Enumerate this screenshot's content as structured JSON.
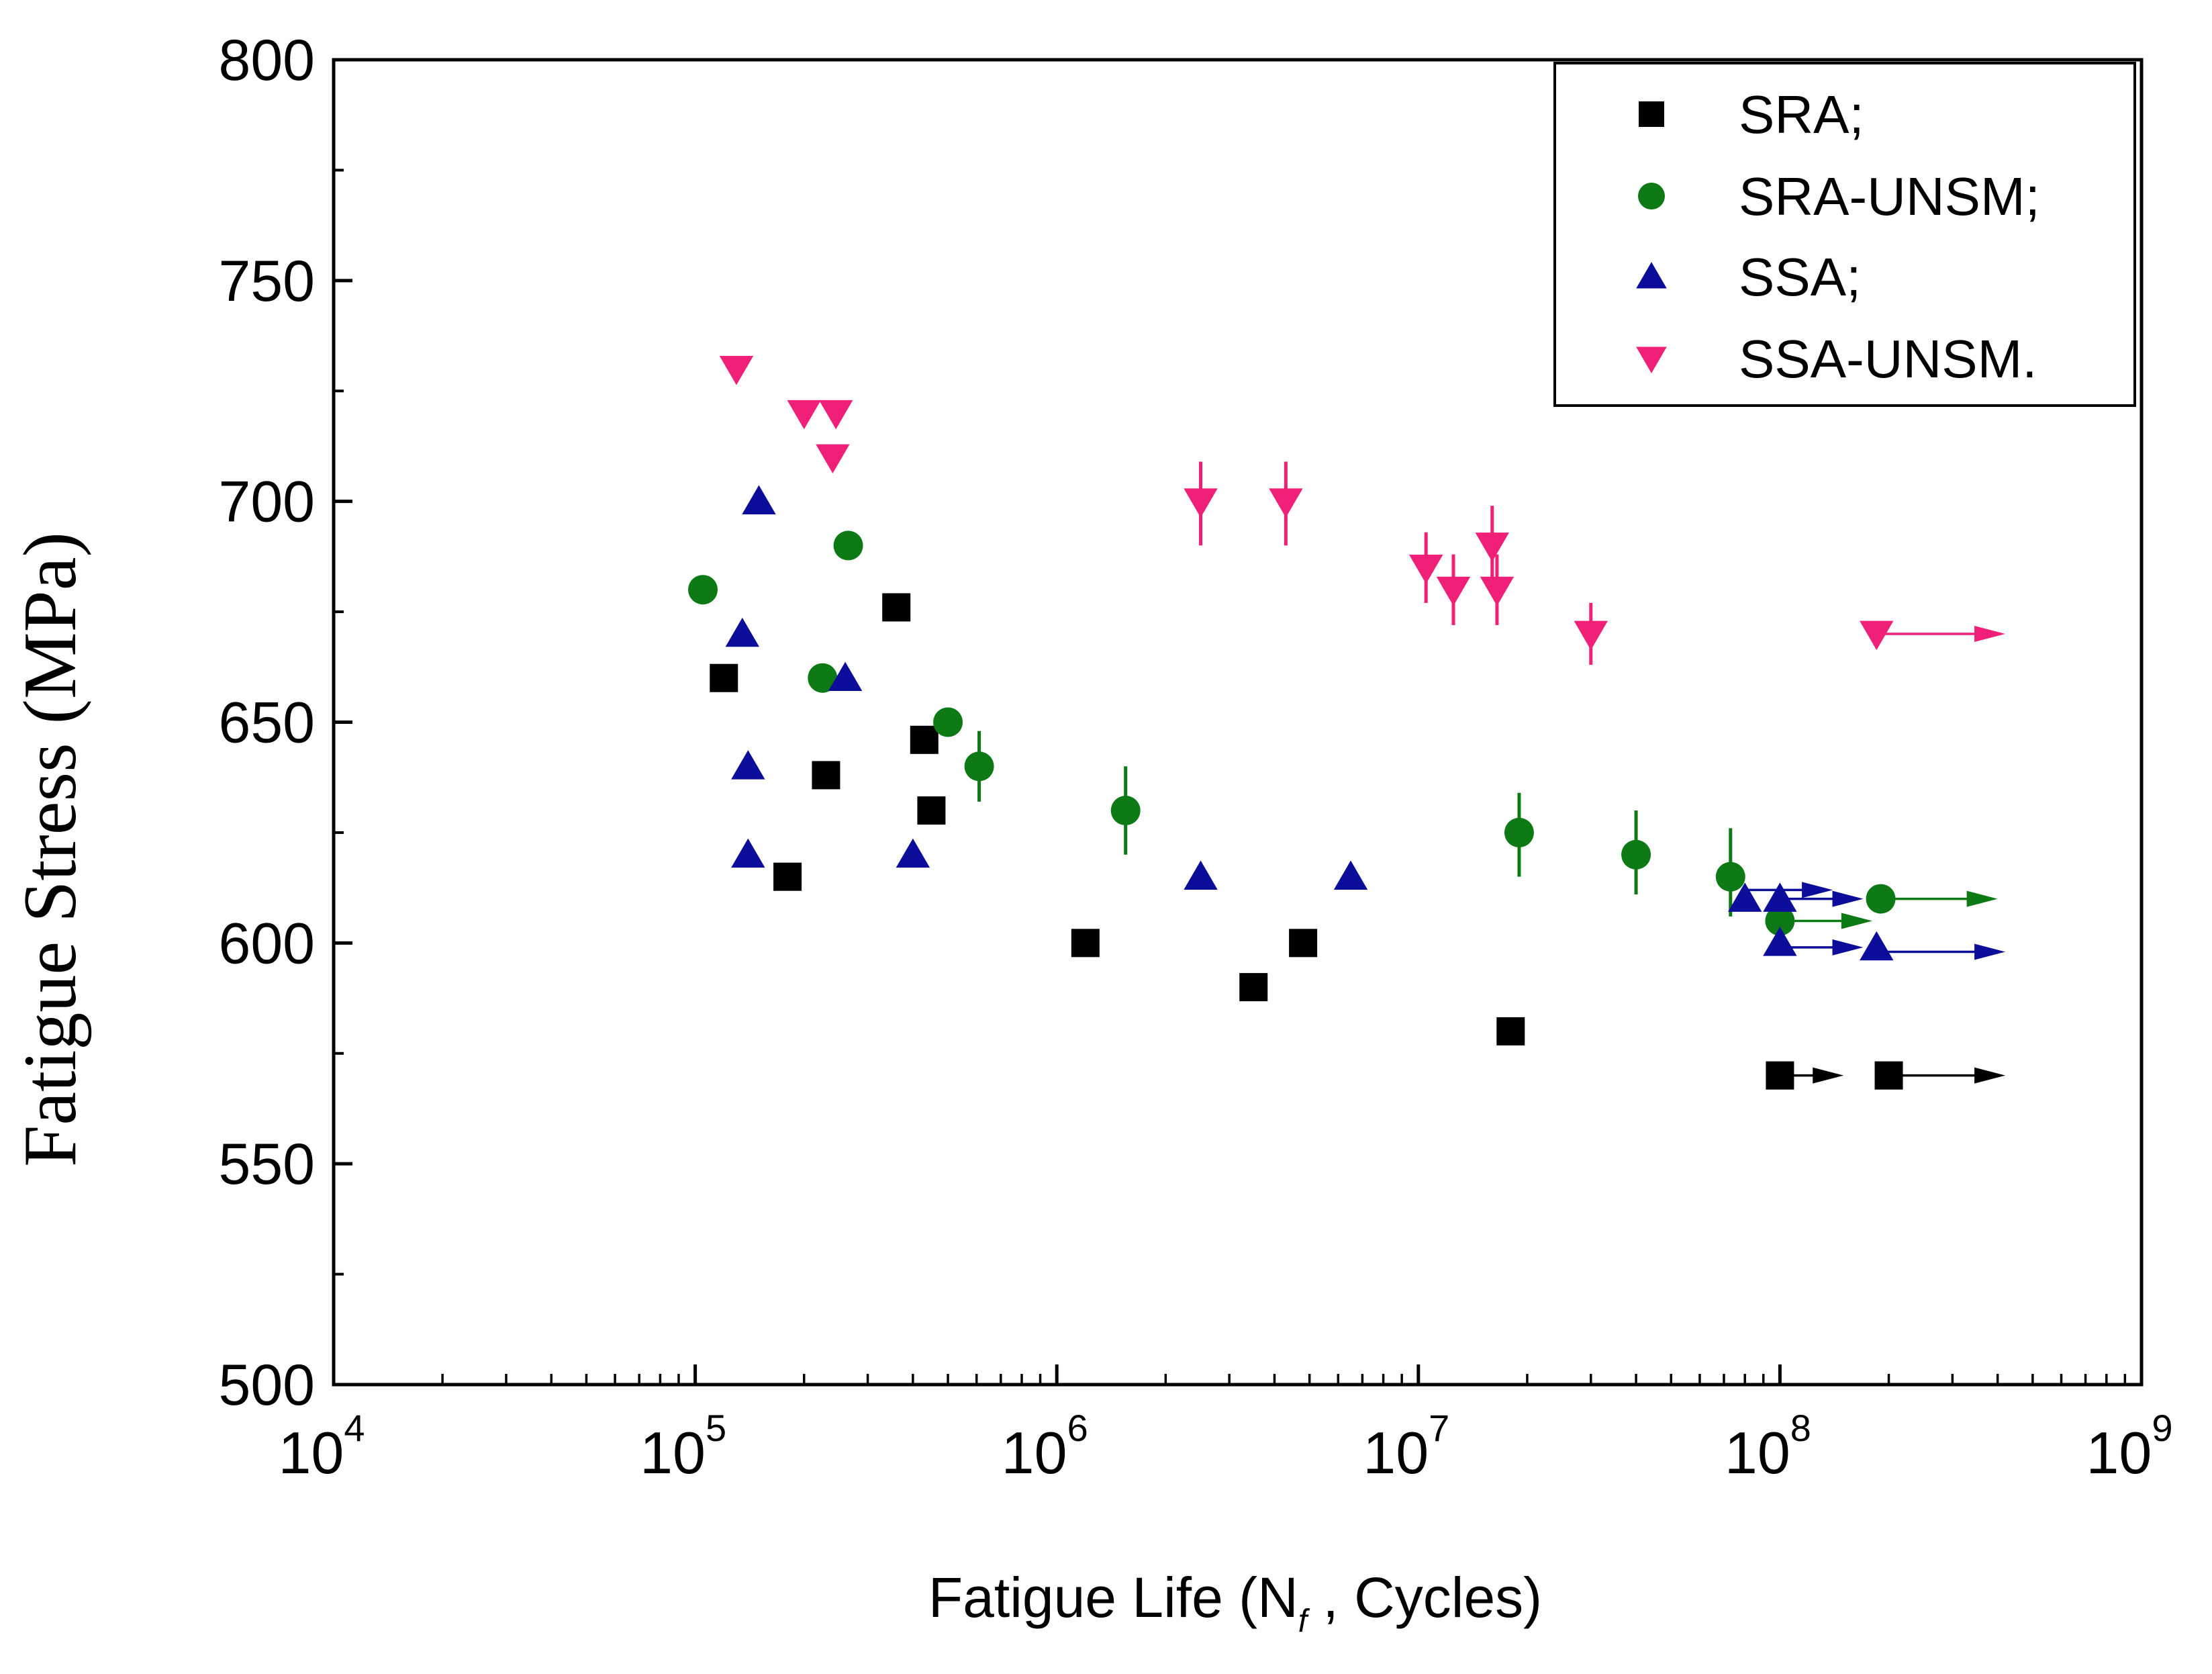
{
  "chart_data": {
    "type": "scatter",
    "xlabel_prefix": "Fatigue Life (N",
    "xlabel_sub": "f",
    "xlabel_suffix": " , Cycles)",
    "ylabel": "Fatigue Stress (MPa)",
    "x_scale": "log",
    "xlim": [
      10000,
      1000000000
    ],
    "ylim": [
      500,
      800
    ],
    "x_ticks": [
      {
        "base": "10",
        "exp": "4",
        "value": 10000
      },
      {
        "base": "10",
        "exp": "5",
        "value": 100000
      },
      {
        "base": "10",
        "exp": "6",
        "value": 1000000
      },
      {
        "base": "10",
        "exp": "7",
        "value": 10000000
      },
      {
        "base": "10",
        "exp": "8",
        "value": 100000000
      },
      {
        "base": "10",
        "exp": "9",
        "value": 1000000000
      }
    ],
    "y_ticks": [
      "500",
      "550",
      "600",
      "650",
      "700",
      "750",
      "800"
    ],
    "grid": false,
    "legend_position": "top-right",
    "series": [
      {
        "name": "SRA;",
        "marker": "square",
        "color": "#000000",
        "points": [
          {
            "x": 120000,
            "y": 660
          },
          {
            "x": 180000,
            "y": 615
          },
          {
            "x": 230000,
            "y": 638
          },
          {
            "x": 360000,
            "y": 676
          },
          {
            "x": 430000,
            "y": 646
          },
          {
            "x": 450000,
            "y": 630
          },
          {
            "x": 1200000,
            "y": 600
          },
          {
            "x": 3500000,
            "y": 590
          },
          {
            "x": 4800000,
            "y": 600
          },
          {
            "x": 18000000,
            "y": 580
          },
          {
            "x": 100000000,
            "y": 570
          },
          {
            "x": 200000000,
            "y": 570
          }
        ],
        "error_bars": [],
        "runouts": [
          {
            "x": 100000000,
            "y": 570,
            "x_end": 150000000
          },
          {
            "x": 200000000,
            "y": 570,
            "x_end": 420000000
          }
        ]
      },
      {
        "name": "SRA-UNSM;",
        "marker": "circle",
        "color": "#0e7a16",
        "points": [
          {
            "x": 105000,
            "y": 680
          },
          {
            "x": 225000,
            "y": 660
          },
          {
            "x": 265000,
            "y": 690
          },
          {
            "x": 500000,
            "y": 650
          },
          {
            "x": 610000,
            "y": 640
          },
          {
            "x": 1550000,
            "y": 630
          },
          {
            "x": 19000000,
            "y": 625
          },
          {
            "x": 40000000,
            "y": 620
          },
          {
            "x": 73000000,
            "y": 615
          },
          {
            "x": 100000000,
            "y": 605
          },
          {
            "x": 190000000,
            "y": 610
          }
        ],
        "error_bars": [
          {
            "x": 610000,
            "y_low": 632,
            "y_high": 648
          },
          {
            "x": 1550000,
            "y_low": 620,
            "y_high": 640
          },
          {
            "x": 19000000,
            "y_low": 615,
            "y_high": 634
          },
          {
            "x": 40000000,
            "y_low": 611,
            "y_high": 630
          },
          {
            "x": 73000000,
            "y_low": 606,
            "y_high": 626
          }
        ],
        "runouts": [
          {
            "x": 100000000,
            "y": 605,
            "x_end": 180000000
          },
          {
            "x": 190000000,
            "y": 610,
            "x_end": 400000000
          }
        ]
      },
      {
        "name": "SSA;",
        "marker": "triangle-up",
        "color": "#0d0d9c",
        "points": [
          {
            "x": 135000,
            "y": 670
          },
          {
            "x": 140000,
            "y": 640
          },
          {
            "x": 140000,
            "y": 620
          },
          {
            "x": 150000,
            "y": 700
          },
          {
            "x": 260000,
            "y": 660
          },
          {
            "x": 400000,
            "y": 620
          },
          {
            "x": 2500000,
            "y": 615
          },
          {
            "x": 6500000,
            "y": 615
          },
          {
            "x": 80000000,
            "y": 610
          },
          {
            "x": 100000000,
            "y": 610
          },
          {
            "x": 100000000,
            "y": 600
          },
          {
            "x": 185000000,
            "y": 599
          }
        ],
        "error_bars": [],
        "runouts": [
          {
            "x": 80000000,
            "y": 612,
            "x_end": 140000000
          },
          {
            "x": 100000000,
            "y": 610,
            "x_end": 170000000
          },
          {
            "x": 100000000,
            "y": 599,
            "x_end": 170000000
          },
          {
            "x": 185000000,
            "y": 598,
            "x_end": 420000000
          }
        ]
      },
      {
        "name": "SSA-UNSM.",
        "marker": "triangle-down",
        "color": "#f01f78",
        "points": [
          {
            "x": 130000,
            "y": 730
          },
          {
            "x": 200000,
            "y": 720
          },
          {
            "x": 245000,
            "y": 720
          },
          {
            "x": 240000,
            "y": 710
          },
          {
            "x": 2500000,
            "y": 700
          },
          {
            "x": 4300000,
            "y": 700
          },
          {
            "x": 10500000,
            "y": 685
          },
          {
            "x": 12500000,
            "y": 680
          },
          {
            "x": 16000000,
            "y": 690
          },
          {
            "x": 16500000,
            "y": 680
          },
          {
            "x": 30000000,
            "y": 670
          },
          {
            "x": 185000000,
            "y": 670
          }
        ],
        "error_bars": [
          {
            "x": 2500000,
            "y_low": 690,
            "y_high": 709
          },
          {
            "x": 4300000,
            "y_low": 690,
            "y_high": 709
          },
          {
            "x": 10500000,
            "y_low": 677,
            "y_high": 693
          },
          {
            "x": 12500000,
            "y_low": 672,
            "y_high": 688
          },
          {
            "x": 16000000,
            "y_low": 682,
            "y_high": 699
          },
          {
            "x": 16500000,
            "y_low": 672,
            "y_high": 688
          },
          {
            "x": 30000000,
            "y_low": 663,
            "y_high": 677
          }
        ],
        "runouts": [
          {
            "x": 185000000,
            "y": 670,
            "x_end": 420000000
          }
        ]
      }
    ]
  }
}
